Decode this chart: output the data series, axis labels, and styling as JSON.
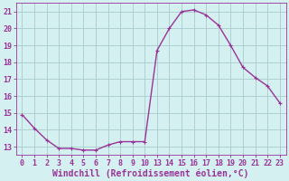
{
  "x": [
    0,
    1,
    2,
    3,
    4,
    5,
    6,
    7,
    8,
    9,
    10,
    13,
    14,
    15,
    16,
    17,
    18,
    19,
    20,
    21,
    22,
    23
  ],
  "y": [
    14.9,
    14.1,
    13.4,
    12.9,
    12.9,
    12.8,
    12.8,
    13.1,
    13.3,
    13.3,
    13.3,
    18.7,
    20.0,
    21.0,
    21.1,
    20.8,
    20.2,
    19.0,
    17.7,
    17.1,
    16.6,
    15.6
  ],
  "x_indices": [
    0,
    1,
    2,
    3,
    4,
    5,
    6,
    7,
    8,
    9,
    10,
    11,
    12,
    13,
    14,
    15,
    16,
    17,
    18,
    19,
    20,
    21
  ],
  "xtick_labels": [
    "0",
    "1",
    "2",
    "3",
    "4",
    "5",
    "6",
    "7",
    "8",
    "9",
    "10",
    "13",
    "14",
    "15",
    "16",
    "17",
    "18",
    "19",
    "20",
    "21",
    "22",
    "23"
  ],
  "line_color": "#993399",
  "marker_color": "#993399",
  "bg_color": "#d4f0f0",
  "grid_color": "#aacccc",
  "xlabel": "Windchill (Refroidissement éolien,°C)",
  "xlabel_color": "#993399",
  "yticks": [
    13,
    14,
    15,
    16,
    17,
    18,
    19,
    20,
    21
  ],
  "ylim": [
    12.5,
    21.5
  ],
  "xlim": [
    -0.5,
    21.5
  ],
  "tick_color": "#993399",
  "tick_labelsize": 6.0,
  "xlabel_fontsize": 7.0,
  "linewidth": 1.0,
  "markersize": 3.0
}
